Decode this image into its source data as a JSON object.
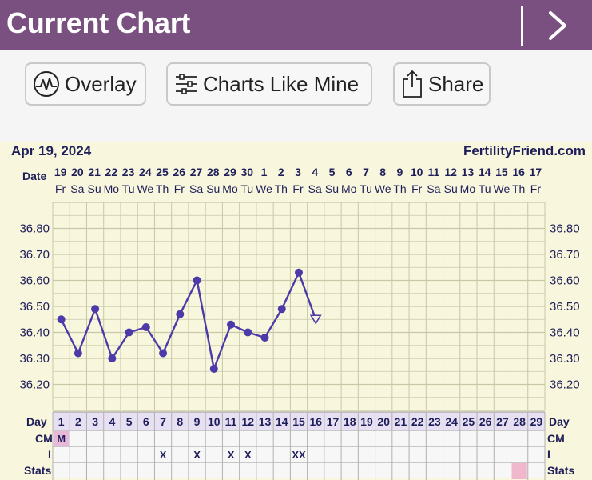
{
  "header": {
    "title": "Current Chart",
    "next_icon": "chevron-right-icon"
  },
  "toolbar": {
    "overlay_label": "Overlay",
    "charts_like_mine_label": "Charts Like Mine",
    "share_label": "Share"
  },
  "colors": {
    "header_bg": "#7a5080",
    "chart_bg": "#f8f6dc",
    "line": "#4b3aa8",
    "grid": "#c8c8a6",
    "day_band": "#e6e0f2",
    "cm_marker": "#e8b8d8",
    "stats_marker": "#f1b7cc"
  },
  "chart_data": {
    "type": "line",
    "title": "Apr 19, 2024",
    "brand": "FertilityFriend.com",
    "row_labels": {
      "date": "Date",
      "day": "Day",
      "cm": "CM",
      "i": "I",
      "stats": "Stats"
    },
    "dates": [
      "19",
      "20",
      "21",
      "22",
      "23",
      "24",
      "25",
      "26",
      "27",
      "28",
      "29",
      "30",
      "1",
      "2",
      "3",
      "4",
      "5",
      "6",
      "7",
      "8",
      "9",
      "10",
      "11",
      "12",
      "13",
      "14",
      "15",
      "16",
      "17"
    ],
    "weekdays": [
      "Fr",
      "Sa",
      "Su",
      "Mo",
      "Tu",
      "We",
      "Th",
      "Fr",
      "Sa",
      "Su",
      "Mo",
      "Tu",
      "We",
      "Th",
      "Fr",
      "Sa",
      "Su",
      "Mo",
      "Tu",
      "We",
      "Th",
      "Fr",
      "Sa",
      "Su",
      "Mo",
      "Tu",
      "We",
      "Th",
      "Fr"
    ],
    "days": [
      1,
      2,
      3,
      4,
      5,
      6,
      7,
      8,
      9,
      10,
      11,
      12,
      13,
      14,
      15,
      16,
      17,
      18,
      19,
      20,
      21,
      22,
      23,
      24,
      25,
      26,
      27,
      28,
      29
    ],
    "y_ticks": [
      "36.80",
      "36.70",
      "36.60",
      "36.50",
      "36.40",
      "36.30",
      "36.20"
    ],
    "ylim": [
      36.1,
      36.9
    ],
    "temperatures": [
      36.45,
      36.32,
      36.49,
      36.3,
      36.4,
      36.42,
      36.32,
      36.47,
      36.6,
      36.26,
      36.43,
      36.4,
      36.38,
      36.49,
      36.63
    ],
    "open_point": {
      "day": 16,
      "value": 36.45
    },
    "cm": [
      {
        "day": 1,
        "text": "M"
      }
    ],
    "intercourse": [
      {
        "day": 7,
        "text": "X"
      },
      {
        "day": 9,
        "text": "X"
      },
      {
        "day": 11,
        "text": "X"
      },
      {
        "day": 12,
        "text": "X"
      },
      {
        "day": 15,
        "text": "XX"
      }
    ],
    "stats_marked_day": 28
  }
}
